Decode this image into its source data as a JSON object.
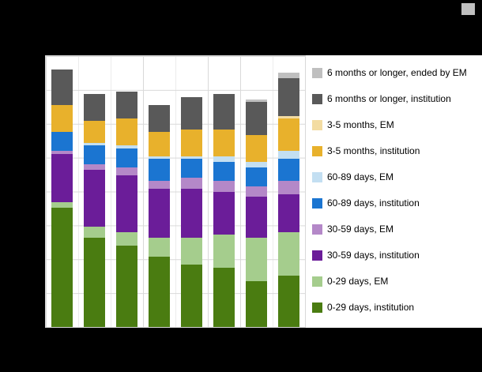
{
  "page": {
    "background_color": "#000000",
    "panel_color": "#ffffff",
    "gridline_color": "#d9d9d9"
  },
  "decor": {
    "top_right_square_color": "#bfbfbf"
  },
  "legend": {
    "items": [
      {
        "label": "6 months or longer, ended by EM",
        "color": "#bfbfbf"
      },
      {
        "label": "6 months or longer, institution",
        "color": "#595959"
      },
      {
        "label": "3-5 months, EM",
        "color": "#f3dca2"
      },
      {
        "label": "3-5 months, institution",
        "color": "#e8b12c"
      },
      {
        "label": "60-89 days, EM",
        "color": "#c3dff2"
      },
      {
        "label": "60-89 days, institution",
        "color": "#1b75d1"
      },
      {
        "label": "30-59 days, EM",
        "color": "#b488c8"
      },
      {
        "label": "30-59 days, institution",
        "color": "#6b1d99"
      },
      {
        "label": "0-29 days, EM",
        "color": "#a5cd8d"
      },
      {
        "label": "0-29 days, institution",
        "color": "#4a7c11"
      }
    ]
  },
  "chart_data": {
    "type": "bar",
    "stacked": true,
    "title": "",
    "xlabel": "",
    "ylabel": "",
    "categories": [
      "",
      "",
      "",
      "",
      "",
      "",
      "",
      ""
    ],
    "ylim": [
      0,
      100
    ],
    "series": [
      {
        "name": "0-29 days, institution",
        "color": "#4a7c11",
        "values": [
          44,
          33,
          30,
          26,
          23,
          22,
          17,
          19
        ]
      },
      {
        "name": "0-29 days, EM",
        "color": "#a5cd8d",
        "values": [
          2,
          4,
          5,
          7,
          10,
          12,
          16,
          16
        ]
      },
      {
        "name": "30-59 days, institution",
        "color": "#6b1d99",
        "values": [
          18,
          21,
          21,
          18,
          18,
          16,
          15,
          14
        ]
      },
      {
        "name": "30-59 days, EM",
        "color": "#b488c8",
        "values": [
          1,
          2,
          3,
          3,
          4,
          4,
          4,
          5
        ]
      },
      {
        "name": "60-89 days, institution",
        "color": "#1b75d1",
        "values": [
          7,
          7,
          7,
          8,
          7,
          7,
          7,
          8
        ]
      },
      {
        "name": "60-89 days, EM",
        "color": "#c3dff2",
        "values": [
          0,
          1,
          1,
          1,
          1,
          2,
          2,
          3
        ]
      },
      {
        "name": "3-5 months, institution",
        "color": "#e8b12c",
        "values": [
          10,
          8,
          10,
          9,
          10,
          10,
          10,
          12
        ]
      },
      {
        "name": "3-5 months, EM",
        "color": "#f3dca2",
        "values": [
          0,
          0,
          0,
          0,
          0,
          0,
          0,
          1
        ]
      },
      {
        "name": "6 months or longer, institution",
        "color": "#595959",
        "values": [
          13,
          10,
          10,
          10,
          12,
          13,
          12,
          14
        ]
      },
      {
        "name": "6 months or longer, ended by EM",
        "color": "#bfbfbf",
        "values": [
          0,
          0,
          0,
          0,
          0,
          0,
          1,
          2
        ]
      }
    ],
    "layout": {
      "legend_position": "right",
      "grid": true,
      "grid_divisions_x": 8,
      "grid_divisions_y": 8,
      "x_tick_labels_visible": false,
      "y_tick_labels_visible": false
    }
  }
}
